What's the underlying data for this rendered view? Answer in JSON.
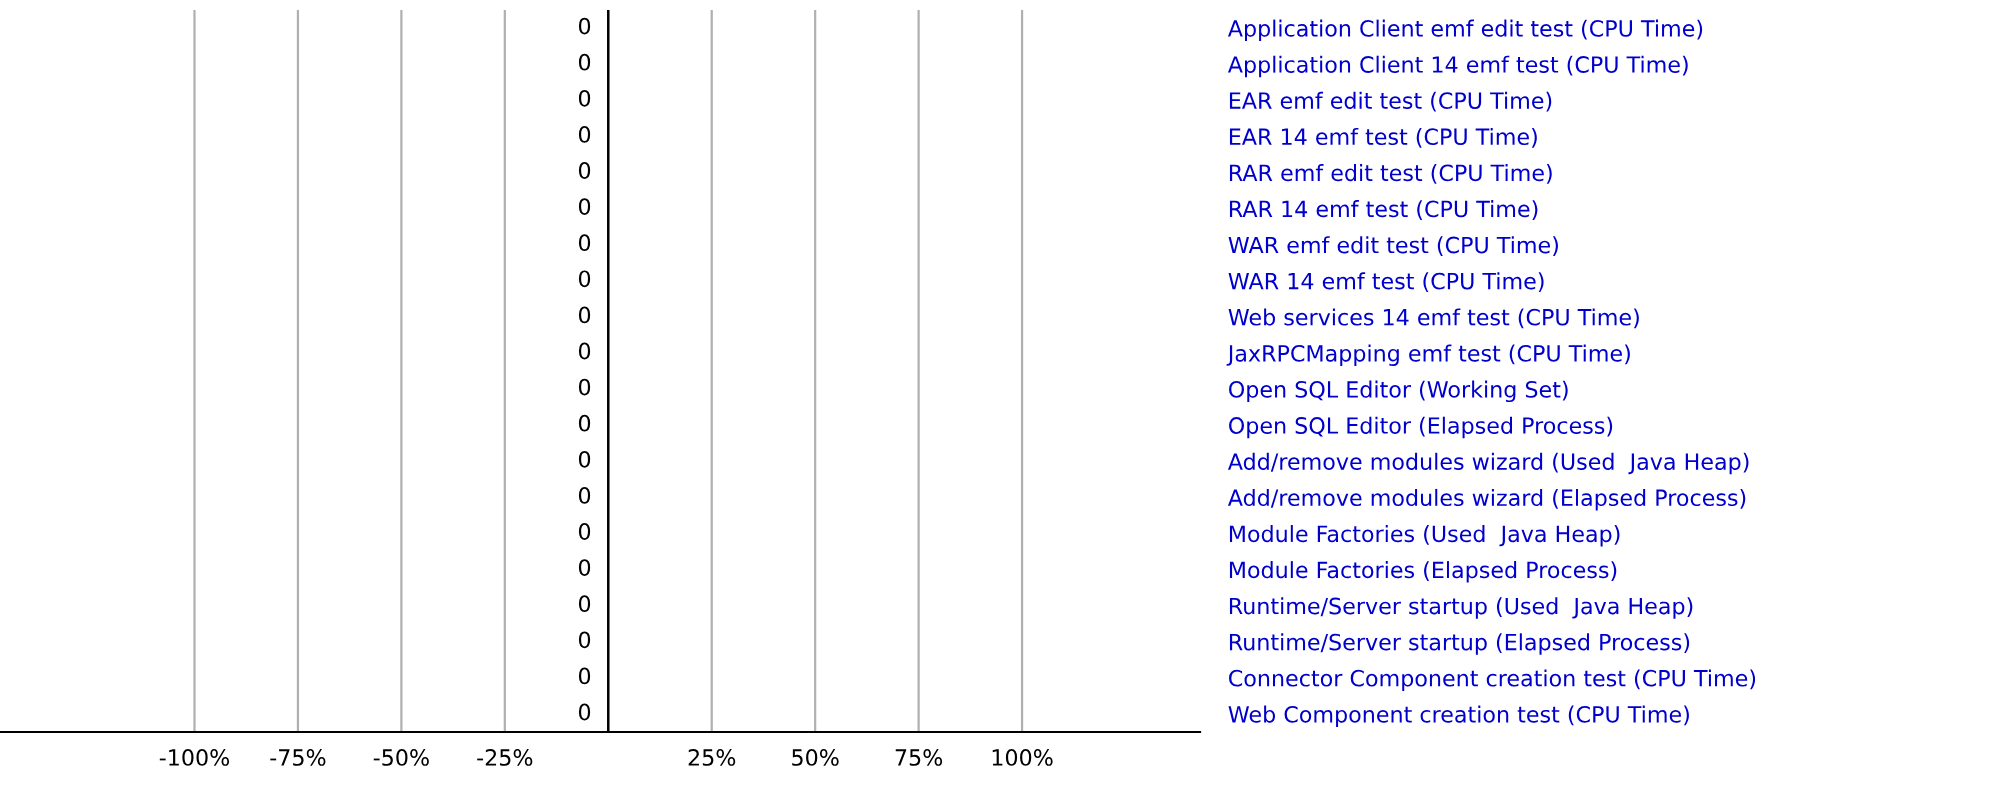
{
  "chart_data": {
    "type": "bar",
    "orientation": "horizontal",
    "categories": [
      "Application Client emf edit test (CPU Time)",
      "Application Client 14 emf test (CPU Time)",
      "EAR emf edit test (CPU Time)",
      "EAR 14 emf test (CPU Time)",
      "RAR emf edit test (CPU Time)",
      "RAR 14 emf test (CPU Time)",
      "WAR emf edit test (CPU Time)",
      "WAR 14 emf test (CPU Time)",
      "Web services 14 emf test (CPU Time)",
      "JaxRPCMapping emf test (CPU Time)",
      "Open SQL Editor (Working Set)",
      "Open SQL Editor (Elapsed Process)",
      "Add/remove modules wizard (Used  Java Heap)",
      "Add/remove modules wizard (Elapsed Process)",
      "Module Factories (Used  Java Heap)",
      "Module Factories (Elapsed Process)",
      "Runtime/Server startup (Used  Java Heap)",
      "Runtime/Server startup (Elapsed Process)",
      "Connector Component creation test (CPU Time)",
      "Web Component creation test (CPU Time)"
    ],
    "values": [
      0,
      0,
      0,
      0,
      0,
      0,
      0,
      0,
      0,
      0,
      0,
      0,
      0,
      0,
      0,
      0,
      0,
      0,
      0,
      0
    ],
    "data_labels": true,
    "xlim": [
      -147,
      143
    ],
    "xticks": [
      {
        "value": -100,
        "label": "-100%"
      },
      {
        "value": -75,
        "label": "-75%"
      },
      {
        "value": -50,
        "label": "-50%"
      },
      {
        "value": -25,
        "label": "-25%"
      },
      {
        "value": 25,
        "label": "25%"
      },
      {
        "value": 50,
        "label": "50%"
      },
      {
        "value": 75,
        "label": "75%"
      },
      {
        "value": 100,
        "label": "100%"
      }
    ],
    "grid": "x"
  }
}
